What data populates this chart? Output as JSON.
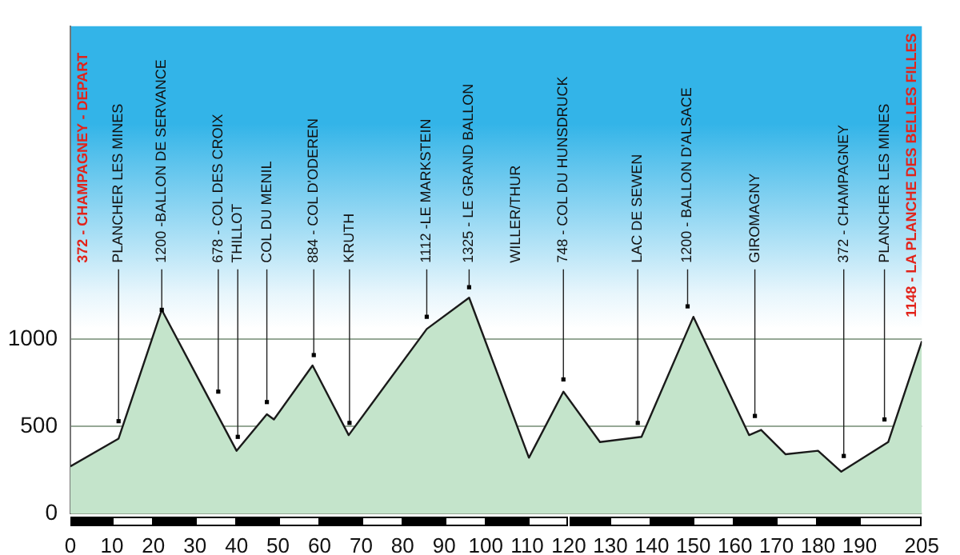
{
  "chart_data": {
    "type": "area",
    "x": [
      0,
      11.6,
      22,
      40,
      47.3,
      49,
      58.3,
      67,
      85.8,
      96,
      110.4,
      118.7,
      127.5,
      137.5,
      150,
      163.4,
      166.3,
      172.2,
      180,
      185.6,
      196.9,
      205
    ],
    "values": [
      270,
      430,
      1170,
      360,
      570,
      540,
      850,
      450,
      1060,
      1240,
      320,
      700,
      410,
      440,
      1130,
      450,
      480,
      340,
      360,
      240,
      410,
      990
    ],
    "color": "#c4e4cb",
    "xlim": [
      0,
      205
    ],
    "xticks": [
      0,
      10,
      20,
      30,
      40,
      50,
      60,
      70,
      80,
      90,
      100,
      110,
      120,
      130,
      140,
      150,
      160,
      170,
      180,
      190,
      205
    ],
    "ylim": [
      0,
      2800
    ],
    "yticks": [
      0,
      500,
      1000
    ],
    "grid": "y",
    "marker": "none",
    "legend": false,
    "annotations": [
      "372 - CHAMPAGNEY - DEPART",
      {
        "text": "PLANCHER LES MINES",
        "x": 11.6,
        "y": 530
      },
      {
        "text": "1200 -BALLON DE SERVANCE",
        "x": 22,
        "y": 1170
      },
      {
        "text": "678 - COL DES CROIX",
        "x": 35.6,
        "y": 700
      },
      {
        "text": "THILLOT",
        "x": 40.3,
        "y": 440
      },
      {
        "text": "COL DU MENIL",
        "x": 47.3,
        "y": 640
      },
      {
        "text": "884 - COL D'ODEREN",
        "x": 58.6,
        "y": 910
      },
      {
        "text": "KRUTH",
        "x": 67.2,
        "y": 520
      },
      {
        "text": "1112 -LE MARKSTEIN",
        "x": 85.8,
        "y": 1130
      },
      {
        "text": "1325 - LE GRAND BALLON",
        "x": 96,
        "y": 1300
      },
      "WILLER/THUR",
      {
        "text": "748 - COL DU HUNSDRUCK",
        "x": 118.7,
        "y": 770
      },
      {
        "text": "LAC DE SEWEN",
        "x": 136.6,
        "y": 520
      },
      {
        "text": "1200 - BALLON D'ALSACE",
        "x": 148.6,
        "y": 1190
      },
      {
        "text": "GIROMAGNY",
        "x": 164.8,
        "y": 560
      },
      {
        "text": "372 - CHAMPAGNEY",
        "x": 186.2,
        "y": 330
      },
      {
        "text": "PLANCHER LES MINES",
        "x": 196,
        "y": 540
      },
      "1148 - LA PLANCHE DES BELLES FILLES"
    ]
  }
}
